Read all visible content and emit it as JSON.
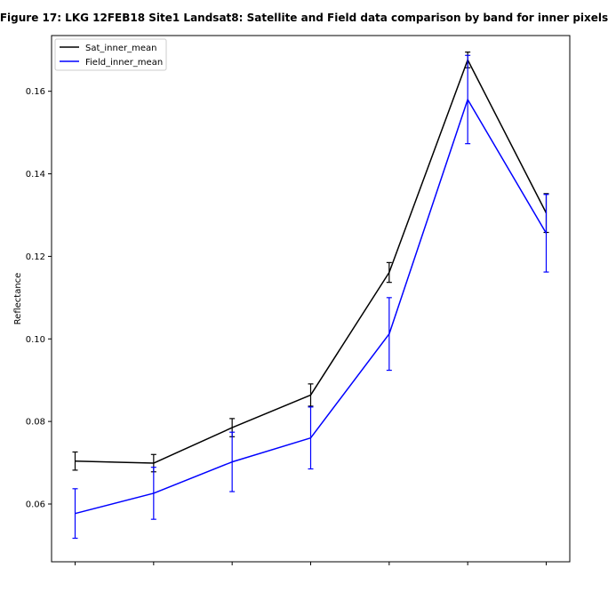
{
  "chart_data": {
    "type": "line",
    "title": "Figure 17: LKG 12FEB18 Site1 Landsat8: Satellite and Field data comparison by band for inner pixels",
    "xlabel": "",
    "ylabel": "Reflectance",
    "x": [
      1,
      2,
      3,
      4,
      5,
      6,
      7
    ],
    "xlim": [
      0.7,
      7.3
    ],
    "ylim": [
      0.046,
      0.1735
    ],
    "yticks": [
      0.06,
      0.08,
      0.1,
      0.12,
      0.14,
      0.16
    ],
    "ytick_labels": [
      "0.06",
      "0.08",
      "0.10",
      "0.12",
      "0.14",
      "0.16"
    ],
    "xtick_labels": [
      "",
      "",
      "",
      "",
      "",
      "",
      ""
    ],
    "grid": false,
    "legend_position": "top-left",
    "series": [
      {
        "name": "Sat_inner_mean",
        "color": "#000000",
        "values": [
          0.0704,
          0.0699,
          0.0785,
          0.0864,
          0.1161,
          0.1676,
          0.1305
        ],
        "errors": [
          0.0022,
          0.0021,
          0.0022,
          0.0027,
          0.0024,
          0.0019,
          0.0047
        ]
      },
      {
        "name": "Field_inner_mean",
        "color": "#0000ff",
        "values": [
          0.0577,
          0.0626,
          0.0702,
          0.076,
          0.1012,
          0.158,
          0.1256
        ],
        "errors": [
          0.006,
          0.0063,
          0.0072,
          0.0075,
          0.0088,
          0.0107,
          0.0094
        ]
      }
    ]
  }
}
